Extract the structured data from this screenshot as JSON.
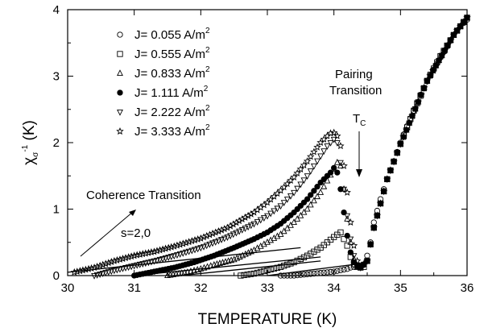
{
  "chart_data": {
    "type": "scatter",
    "title": "",
    "xlabel": "TEMPERATURE (K)",
    "ylabel": {
      "base": "χ",
      "sub": "σ",
      "sup": "-1",
      "unit": " (K)"
    },
    "xlim": [
      30,
      36
    ],
    "ylim": [
      0,
      4
    ],
    "x_ticks": [
      "30",
      "31",
      "32",
      "33",
      "34",
      "35",
      "36"
    ],
    "y_ticks": [
      "0",
      "1",
      "2",
      "3",
      "4"
    ],
    "grid": false,
    "legend_position": "top-left",
    "series": [
      {
        "name": "J= 0.055 A/m",
        "sup": "2",
        "marker": "circle-open",
        "x": [
          33.2,
          33.4,
          33.6,
          33.8,
          34.0,
          34.1,
          34.2,
          34.25,
          34.3,
          34.35,
          34.4,
          34.45,
          34.5,
          34.55,
          34.6,
          34.7,
          34.8,
          34.9,
          35.0,
          35.1,
          35.2,
          35.3,
          35.4,
          35.5,
          35.6,
          35.7,
          35.8,
          35.9,
          36.0
        ],
        "y": [
          0.0,
          0.0,
          0.02,
          0.04,
          0.06,
          0.08,
          0.1,
          0.12,
          0.13,
          0.14,
          0.14,
          0.16,
          0.3,
          0.5,
          0.8,
          1.15,
          1.45,
          1.72,
          2.0,
          2.25,
          2.48,
          2.72,
          2.92,
          3.1,
          3.28,
          3.45,
          3.62,
          3.75,
          3.85
        ]
      },
      {
        "name": "J= 0.555 A/m",
        "sup": "2",
        "marker": "square-open",
        "x": [
          32.6,
          32.8,
          33.0,
          33.2,
          33.4,
          33.6,
          33.8,
          34.0,
          34.1,
          34.2,
          34.25,
          34.3,
          34.35,
          34.4,
          34.45,
          34.5,
          34.6,
          34.8,
          35.0,
          35.2,
          35.4,
          35.6,
          35.8,
          36.0
        ],
        "y": [
          0.0,
          0.03,
          0.08,
          0.13,
          0.2,
          0.3,
          0.42,
          0.58,
          0.65,
          0.45,
          0.28,
          0.17,
          0.13,
          0.12,
          0.13,
          0.22,
          0.72,
          1.45,
          1.98,
          2.48,
          2.93,
          3.3,
          3.62,
          3.88
        ]
      },
      {
        "name": "J= 0.833 A/m",
        "sup": "2",
        "marker": "triangle-up-open",
        "x": [
          31.5,
          31.8,
          32.0,
          32.2,
          32.5,
          32.8,
          33.0,
          33.2,
          33.4,
          33.6,
          33.8,
          34.0,
          34.05,
          34.1,
          34.15,
          34.2,
          34.25,
          34.3,
          34.35,
          34.4,
          34.5,
          34.6,
          34.8,
          35.0,
          35.4,
          35.8,
          36.0
        ],
        "y": [
          0.0,
          0.05,
          0.1,
          0.16,
          0.24,
          0.38,
          0.5,
          0.62,
          0.8,
          1.0,
          1.25,
          1.6,
          1.7,
          1.65,
          1.3,
          0.85,
          0.5,
          0.25,
          0.15,
          0.12,
          0.22,
          0.72,
          1.45,
          1.98,
          2.93,
          3.62,
          3.88
        ]
      },
      {
        "name": "J= 1.111 A/m",
        "sup": "2",
        "marker": "circle-filled",
        "x": [
          31.0,
          31.3,
          31.6,
          31.9,
          32.2,
          32.5,
          32.8,
          33.0,
          33.2,
          33.4,
          33.6,
          33.8,
          33.95,
          34.0,
          34.05,
          34.1,
          34.15,
          34.2,
          34.25,
          34.3,
          34.35,
          34.4,
          34.5,
          34.6,
          34.8,
          35.0,
          35.4,
          35.8,
          36.0
        ],
        "y": [
          0.0,
          0.06,
          0.12,
          0.2,
          0.3,
          0.42,
          0.55,
          0.65,
          0.78,
          0.95,
          1.15,
          1.4,
          1.55,
          1.62,
          1.55,
          1.3,
          0.95,
          0.6,
          0.35,
          0.2,
          0.14,
          0.12,
          0.22,
          0.72,
          1.45,
          1.98,
          2.93,
          3.62,
          3.88
        ]
      },
      {
        "name": "J= 2.222 A/m",
        "sup": "2",
        "marker": "triangle-down-open",
        "x": [
          30.4,
          30.7,
          31.0,
          31.3,
          31.6,
          32.0,
          32.4,
          32.8,
          33.0,
          33.2,
          33.4,
          33.6,
          33.8,
          33.9,
          34.0,
          34.05,
          34.1,
          34.15,
          34.2,
          34.25,
          34.3,
          34.35,
          34.4,
          34.5,
          34.6,
          34.8,
          35.0,
          35.4,
          35.8,
          36.0
        ],
        "y": [
          0.0,
          0.08,
          0.15,
          0.22,
          0.3,
          0.42,
          0.58,
          0.78,
          0.9,
          1.05,
          1.25,
          1.5,
          1.8,
          1.95,
          2.05,
          2.0,
          1.7,
          1.3,
          0.9,
          0.55,
          0.3,
          0.16,
          0.12,
          0.22,
          0.72,
          1.45,
          1.98,
          2.93,
          3.62,
          3.88
        ]
      },
      {
        "name": "J= 3.333 A/m",
        "sup": "2",
        "marker": "star-open",
        "x": [
          30.1,
          30.4,
          30.7,
          31.0,
          31.3,
          31.6,
          32.0,
          32.4,
          32.8,
          33.0,
          33.2,
          33.4,
          33.6,
          33.8,
          33.9,
          33.95,
          34.0,
          34.05,
          34.1,
          34.15,
          34.2,
          34.25,
          34.3,
          34.35,
          34.4,
          34.5,
          34.6,
          34.8,
          35.0,
          35.4,
          35.8,
          36.0
        ],
        "y": [
          0.05,
          0.12,
          0.22,
          0.3,
          0.36,
          0.44,
          0.56,
          0.72,
          0.95,
          1.1,
          1.28,
          1.48,
          1.72,
          2.0,
          2.1,
          2.14,
          2.15,
          2.1,
          1.95,
          1.65,
          1.25,
          0.8,
          0.45,
          0.22,
          0.13,
          0.22,
          0.72,
          1.45,
          1.98,
          2.93,
          3.62,
          3.88
        ]
      }
    ],
    "fit_lines": [
      {
        "x": [
          30.0,
          33.5
        ],
        "y": [
          0.05,
          0.42
        ]
      },
      {
        "x": [
          31.0,
          33.8
        ],
        "y": [
          0.0,
          0.28
        ]
      },
      {
        "x": [
          31.7,
          33.8
        ],
        "y": [
          0.0,
          0.22
        ]
      },
      {
        "x": [
          33.0,
          34.4
        ],
        "y": [
          0.0,
          0.18
        ]
      }
    ],
    "annotations": [
      {
        "text": "Coherence Transition"
      },
      {
        "text": "s=2,0"
      },
      {
        "text": "Pairing"
      },
      {
        "text": "Transition"
      },
      {
        "text": "T",
        "sub": "C"
      }
    ]
  }
}
